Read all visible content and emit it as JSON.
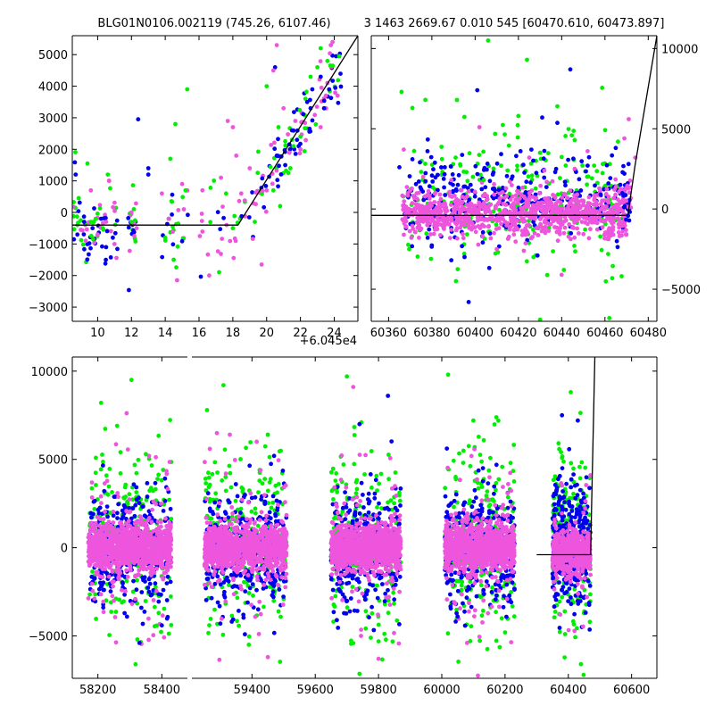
{
  "header": {
    "title_left": "BLG01N0106.002119 (745.26, 6107.46)",
    "title_right": "3 1463 2669.67 0.010 545 [60470.610, 60473.897]"
  },
  "colors": {
    "series_1": "#00ee00",
    "series_2": "#0000ee",
    "series_3": "#ee55dd",
    "model": "#000000",
    "background": "#ffffff"
  },
  "chart_data": [
    {
      "type": "scatter",
      "panel": "top-left zoom",
      "x_offset_label": "+6.045e4",
      "xlim": [
        8.5,
        25.4
      ],
      "ylim": [
        -3450,
        5600
      ],
      "xticks": [
        10,
        12,
        14,
        16,
        18,
        20,
        22,
        24
      ],
      "xtick_labels": [
        "10",
        "12",
        "14",
        "16",
        "18",
        "20",
        "22",
        "24"
      ],
      "yticks": [
        -3000,
        -2000,
        -1000,
        0,
        1000,
        2000,
        3000,
        4000,
        5000
      ],
      "ytick_labels": [
        "−3000",
        "−2000",
        "−1000",
        "0",
        "1000",
        "2000",
        "3000",
        "4000",
        "5000"
      ],
      "model_line": {
        "x": [
          8.5,
          18.3,
          25.4
        ],
        "y": [
          -400,
          -400,
          5600
        ]
      },
      "series": [
        {
          "color_key": "series_1",
          "points": [
            [
              8.8,
              -400
            ],
            [
              9.0,
              -250
            ],
            [
              9.4,
              1550
            ],
            [
              9.6,
              -300
            ],
            [
              10.3,
              -500
            ],
            [
              10.6,
              1200
            ],
            [
              12.0,
              -300
            ],
            [
              14.0,
              -800
            ],
            [
              14.3,
              1700
            ],
            [
              14.6,
              2800
            ],
            [
              14.5,
              -1500
            ],
            [
              15.3,
              3900
            ],
            [
              15.2,
              700
            ],
            [
              17.6,
              600
            ],
            [
              18.0,
              -500
            ],
            [
              19.3,
              -300
            ],
            [
              20.0,
              4000
            ],
            [
              20.4,
              700
            ],
            [
              20.7,
              2700
            ],
            [
              20.8,
              200
            ],
            [
              21.4,
              1400
            ],
            [
              21.5,
              2300
            ],
            [
              22.0,
              2400
            ],
            [
              22.3,
              3600
            ],
            [
              22.6,
              4300
            ],
            [
              23.2,
              5200
            ],
            [
              23.0,
              4600
            ],
            [
              23.6,
              4800
            ]
          ]
        },
        {
          "color_key": "series_2",
          "points": [
            [
              8.7,
              1200
            ],
            [
              8.8,
              -700
            ],
            [
              9.2,
              -300
            ],
            [
              9.7,
              -500
            ],
            [
              10.2,
              -200
            ],
            [
              10.5,
              -1100
            ],
            [
              10.9,
              -800
            ],
            [
              12.4,
              2950
            ],
            [
              13.0,
              1400
            ],
            [
              13.0,
              1200
            ],
            [
              20.5,
              4600
            ],
            [
              20.6,
              1800
            ],
            [
              21.1,
              1500
            ],
            [
              21.5,
              2600
            ],
            [
              21.8,
              2300
            ],
            [
              21.9,
              2100
            ],
            [
              22.4,
              3500
            ],
            [
              22.6,
              3300
            ],
            [
              22.7,
              3900
            ],
            [
              23.2,
              4300
            ],
            [
              23.4,
              3300
            ],
            [
              23.7,
              3900
            ]
          ]
        },
        {
          "color_key": "series_3",
          "points": [
            [
              9.0,
              -550
            ],
            [
              9.3,
              -900
            ],
            [
              9.6,
              700
            ],
            [
              10.0,
              -700
            ],
            [
              10.5,
              -300
            ],
            [
              11.0,
              -1000
            ],
            [
              12.0,
              0
            ],
            [
              12.3,
              -500
            ],
            [
              13.8,
              600
            ],
            [
              14.2,
              -200
            ],
            [
              14.7,
              -2150
            ],
            [
              15.0,
              900
            ],
            [
              15.1,
              100
            ],
            [
              16.2,
              700
            ],
            [
              16.6,
              -2000
            ],
            [
              17.3,
              1100
            ],
            [
              17.7,
              2900
            ],
            [
              18.0,
              2700
            ],
            [
              18.2,
              1800
            ],
            [
              18.5,
              600
            ],
            [
              19.0,
              1400
            ],
            [
              19.7,
              -1650
            ],
            [
              20.0,
              700
            ],
            [
              20.4,
              4500
            ],
            [
              20.6,
              5300
            ],
            [
              21.0,
              3300
            ],
            [
              21.7,
              2900
            ],
            [
              22.0,
              2000
            ],
            [
              23.2,
              2700
            ],
            [
              23.5,
              3700
            ],
            [
              23.6,
              4100
            ],
            [
              23.8,
              5300
            ],
            [
              23.9,
              5400
            ],
            [
              24.2,
              3700
            ]
          ]
        }
      ]
    },
    {
      "type": "scatter",
      "panel": "top-right zoom",
      "xlim": [
        60352,
        60484
      ],
      "ylim": [
        -7000,
        10800
      ],
      "xticks": [
        60360,
        60380,
        60400,
        60420,
        60440,
        60460,
        60480
      ],
      "xtick_labels": [
        "60360",
        "60380",
        "60400",
        "60420",
        "60440",
        "60460",
        "60480"
      ],
      "yticks": [
        -5000,
        0,
        5000,
        10000
      ],
      "ytick_labels": [
        "−5000",
        "0",
        "5000",
        "10000"
      ],
      "model_line": {
        "x": [
          60352,
          60470.6,
          60473.9,
          60484
        ],
        "y": [
          -400,
          -400,
          2700,
          10800
        ]
      },
      "series": [
        {
          "color_key": "series_1",
          "points": [
            [
              60366,
              7300
            ],
            [
              60371,
              6300
            ],
            [
              60377,
              6800
            ],
            [
              60391,
              3200
            ],
            [
              60396,
              2300
            ],
            [
              60399,
              2000
            ],
            [
              60404,
              1800
            ],
            [
              60411,
              1300
            ],
            [
              60420,
              5800
            ],
            [
              60424,
              9300
            ],
            [
              60430,
              3500
            ],
            [
              60438,
              6400
            ],
            [
              60446,
              4300
            ],
            [
              60455,
              2700
            ],
            [
              60462,
              -6800
            ],
            [
              60466,
              4200
            ],
            [
              60406,
              10500
            ],
            [
              60430,
              -6900
            ],
            [
              60415,
              2400
            ],
            [
              60427,
              -3000
            ],
            [
              60441,
              -3800
            ],
            [
              60459,
              2800
            ]
          ]
        },
        {
          "color_key": "series_2",
          "points": [
            [
              60365,
              2600
            ],
            [
              60371,
              3100
            ],
            [
              60378,
              3600
            ],
            [
              60386,
              2600
            ],
            [
              60392,
              1500
            ],
            [
              60401,
              7400
            ],
            [
              60397,
              -5800
            ],
            [
              60411,
              1200
            ],
            [
              60419,
              3300
            ],
            [
              60426,
              3700
            ],
            [
              60431,
              5700
            ],
            [
              60437,
              2300
            ],
            [
              60444,
              8700
            ],
            [
              60452,
              2700
            ],
            [
              60458,
              900
            ],
            [
              60465,
              3800
            ],
            [
              60469,
              2200
            ]
          ]
        },
        {
          "color_key": "series_3",
          "points": [
            [
              60367,
              3700
            ],
            [
              60376,
              2000
            ],
            [
              60381,
              -800
            ],
            [
              60389,
              1800
            ],
            [
              60397,
              1100
            ],
            [
              60402,
              5100
            ],
            [
              60407,
              -600
            ],
            [
              60410,
              -2500
            ],
            [
              60416,
              1700
            ],
            [
              60422,
              -1600
            ],
            [
              60425,
              3200
            ],
            [
              60432,
              2400
            ],
            [
              60440,
              -4100
            ],
            [
              60446,
              2500
            ],
            [
              60452,
              3600
            ],
            [
              60462,
              -1200
            ],
            [
              60469,
              4400
            ],
            [
              60471,
              5600
            ],
            [
              60474,
              3200
            ]
          ]
        }
      ]
    },
    {
      "type": "scatter",
      "panel": "bottom full light curve",
      "xlim": [
        58120,
        60680
      ],
      "ylim": [
        -7400,
        10800
      ],
      "xticks": [
        58200,
        58400,
        59400,
        59600,
        59800,
        60000,
        60200,
        60400,
        60600
      ],
      "xtick_labels": [
        "58200",
        "58400",
        "59400",
        "59600",
        "59800",
        "60000",
        "60200",
        "60400",
        "60600"
      ],
      "yticks": [
        -5000,
        0,
        5000,
        10000
      ],
      "ytick_labels": [
        "−5000",
        "0",
        "5000",
        "10000"
      ],
      "seasons": [
        [
          58170,
          58430
        ],
        [
          59250,
          59510
        ],
        [
          59650,
          59870
        ],
        [
          60010,
          60230
        ],
        [
          60350,
          60470
        ]
      ],
      "model_line": {
        "x": [
          60300,
          60470.6,
          60473.9,
          60484
        ],
        "y": [
          -400,
          -400,
          2700,
          10800
        ]
      },
      "series": [
        {
          "color_key": "series_1",
          "points": [
            [
              58210,
              8200
            ],
            [
              58260,
              6900
            ],
            [
              58305,
              9500
            ],
            [
              58350,
              5300
            ],
            [
              58390,
              -3700
            ],
            [
              59310,
              9200
            ],
            [
              59390,
              -5500
            ],
            [
              59450,
              6400
            ],
            [
              59700,
              9700
            ],
            [
              59760,
              -3600
            ],
            [
              60020,
              9800
            ],
            [
              60100,
              7200
            ],
            [
              60200,
              -4800
            ],
            [
              60380,
              -2800
            ],
            [
              60440,
              -6600
            ]
          ]
        },
        {
          "color_key": "series_2",
          "points": [
            [
              58220,
              3200
            ],
            [
              58330,
              -5400
            ],
            [
              58400,
              -4400
            ],
            [
              59300,
              -4300
            ],
            [
              59470,
              5200
            ],
            [
              59740,
              7000
            ],
            [
              59830,
              8600
            ],
            [
              60050,
              -3900
            ],
            [
              60130,
              4500
            ],
            [
              60380,
              7500
            ],
            [
              60430,
              7200
            ]
          ]
        },
        {
          "color_key": "series_3",
          "points": [
            [
              58250,
              -3000
            ],
            [
              58360,
              5200
            ],
            [
              59330,
              6400
            ],
            [
              59450,
              -6200
            ],
            [
              59720,
              9100
            ],
            [
              59800,
              -6300
            ],
            [
              60080,
              -5400
            ],
            [
              60210,
              3600
            ],
            [
              60470,
              4100
            ]
          ]
        }
      ]
    }
  ]
}
